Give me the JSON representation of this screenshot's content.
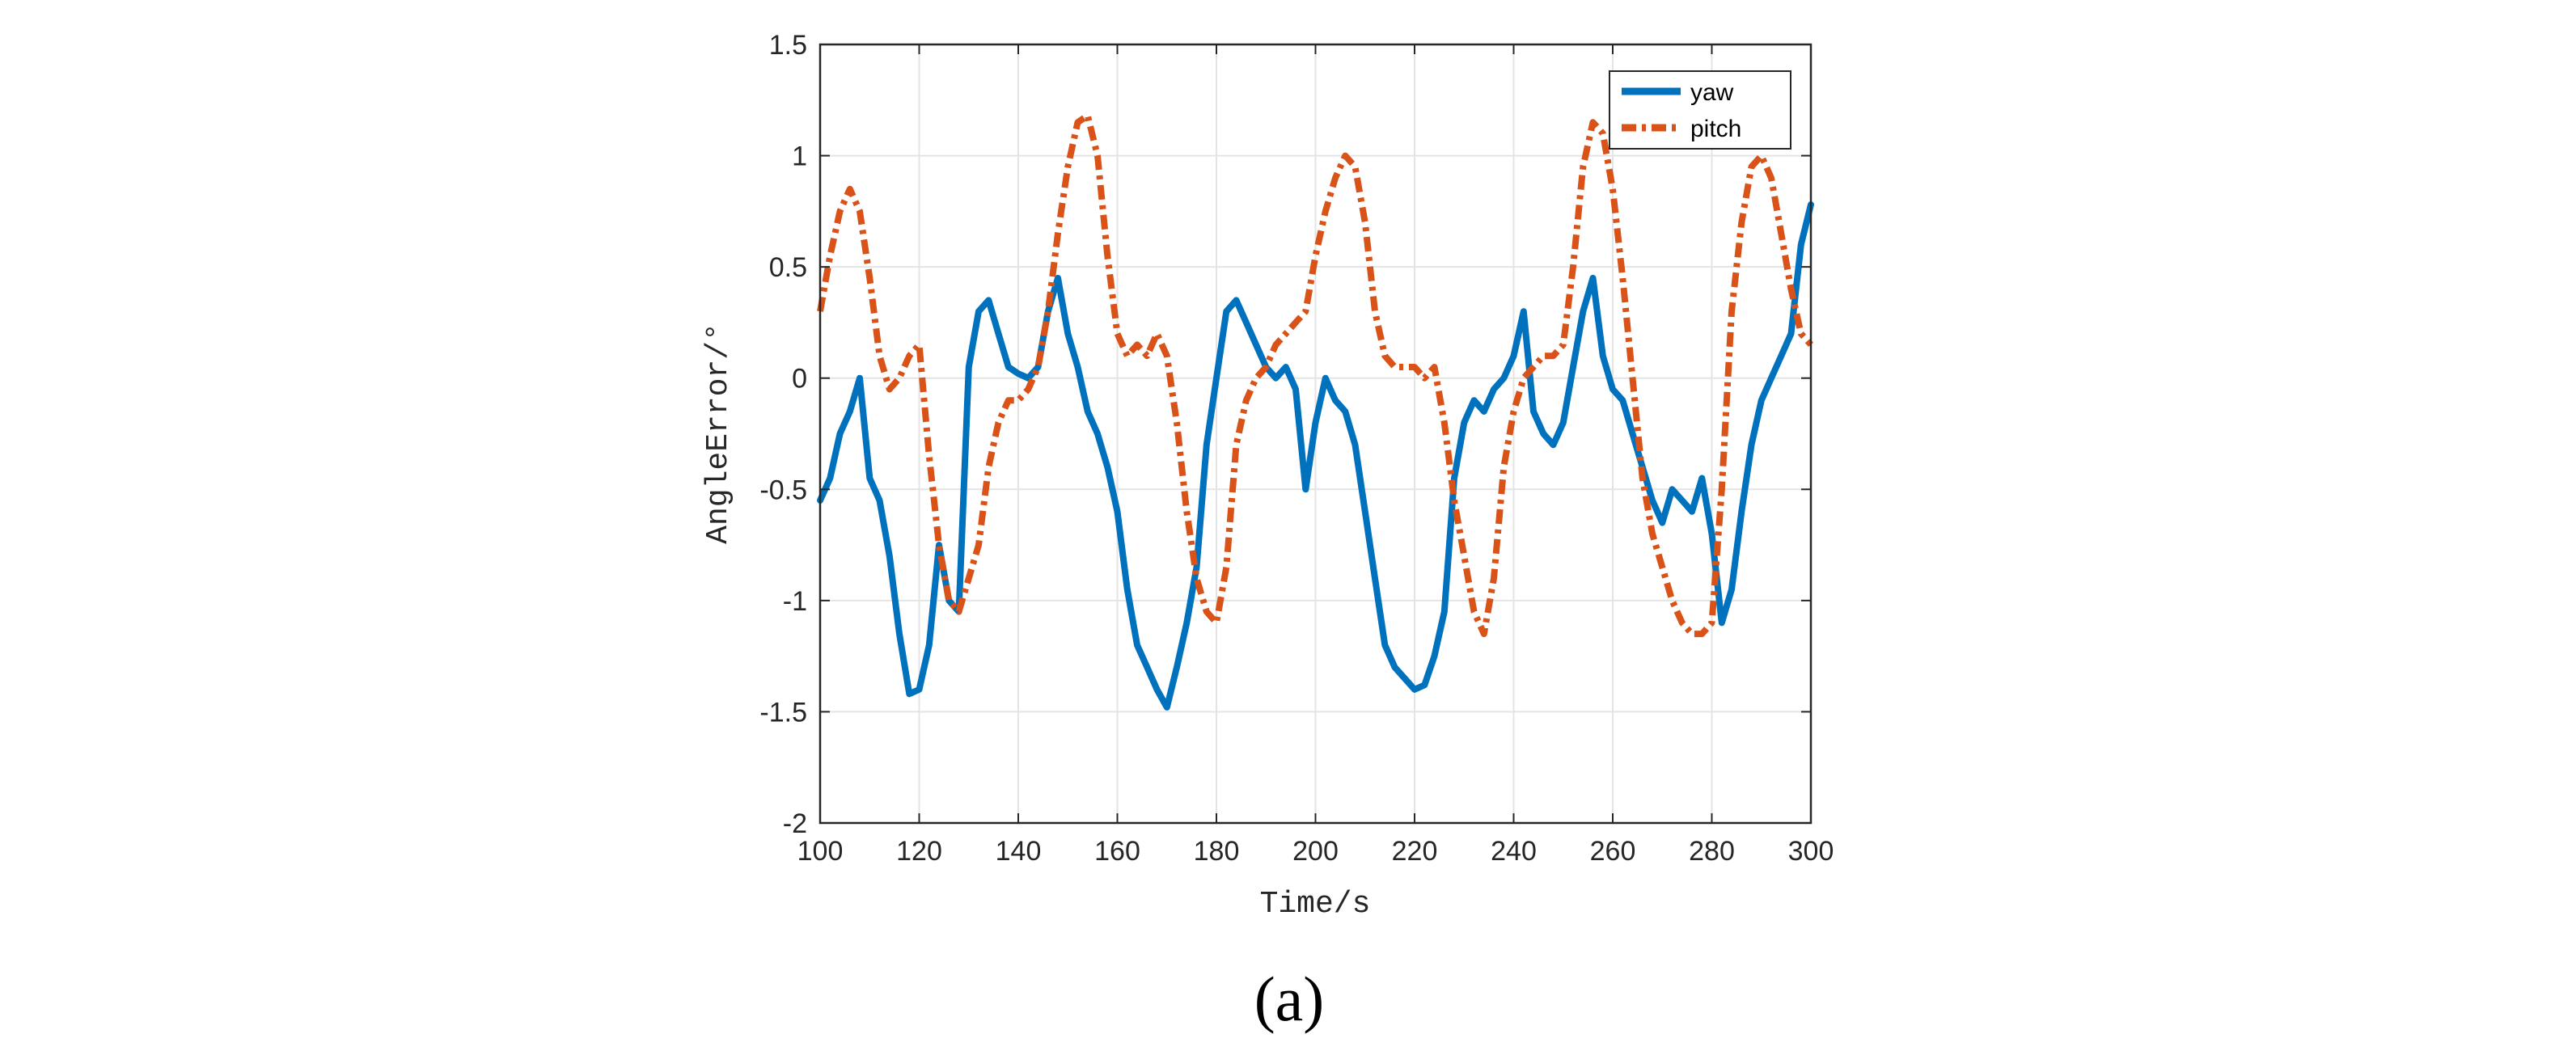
{
  "chart_data": {
    "type": "line",
    "title": "",
    "xlabel": "Time/s",
    "ylabel": "AngleError/°",
    "xlim": [
      100,
      300
    ],
    "ylim": [
      -2,
      1.5
    ],
    "xticks": [
      100,
      120,
      140,
      160,
      180,
      200,
      220,
      240,
      260,
      280,
      300
    ],
    "yticks": [
      -2,
      -1.5,
      -1,
      -0.5,
      0,
      0.5,
      1,
      1.5
    ],
    "xtick_labels": [
      "100",
      "120",
      "140",
      "160",
      "180",
      "200",
      "220",
      "240",
      "260",
      "280",
      "300"
    ],
    "ytick_labels": [
      "-2",
      "-1.5",
      "-1",
      "-0.5",
      "0",
      "0.5",
      "1",
      "1.5"
    ],
    "grid": true,
    "legend_position": "top-right",
    "series": [
      {
        "name": "yaw",
        "color": "#0072BD",
        "style": "solid",
        "x": [
          100,
          102,
          104,
          106,
          108,
          110,
          112,
          114,
          116,
          118,
          120,
          122,
          124,
          126,
          128,
          130,
          132,
          134,
          136,
          138,
          140,
          142,
          144,
          146,
          148,
          150,
          152,
          154,
          156,
          158,
          160,
          162,
          164,
          166,
          168,
          170,
          172,
          174,
          176,
          178,
          180,
          182,
          184,
          186,
          188,
          190,
          192,
          194,
          196,
          198,
          200,
          202,
          204,
          206,
          208,
          210,
          212,
          214,
          216,
          218,
          220,
          222,
          224,
          226,
          228,
          230,
          232,
          234,
          236,
          238,
          240,
          242,
          244,
          246,
          248,
          250,
          252,
          254,
          256,
          258,
          260,
          262,
          264,
          266,
          268,
          270,
          272,
          274,
          276,
          278,
          280,
          282,
          284,
          286,
          288,
          290,
          292,
          294,
          296,
          298,
          300
        ],
        "y": [
          -0.55,
          -0.45,
          -0.25,
          -0.15,
          0.0,
          -0.45,
          -0.55,
          -0.8,
          -1.15,
          -1.42,
          -1.4,
          -1.2,
          -0.75,
          -1.0,
          -1.05,
          0.05,
          0.3,
          0.35,
          0.2,
          0.05,
          0.02,
          0.0,
          0.05,
          0.3,
          0.45,
          0.2,
          0.05,
          -0.15,
          -0.25,
          -0.4,
          -0.6,
          -0.95,
          -1.2,
          -1.3,
          -1.4,
          -1.48,
          -1.3,
          -1.1,
          -0.85,
          -0.3,
          0.0,
          0.3,
          0.35,
          0.25,
          0.15,
          0.05,
          0.0,
          0.05,
          -0.05,
          -0.5,
          -0.2,
          0.0,
          -0.1,
          -0.15,
          -0.3,
          -0.6,
          -0.9,
          -1.2,
          -1.3,
          -1.35,
          -1.4,
          -1.38,
          -1.25,
          -1.05,
          -0.45,
          -0.2,
          -0.1,
          -0.15,
          -0.05,
          0.0,
          0.1,
          0.3,
          -0.15,
          -0.25,
          -0.3,
          -0.2,
          0.05,
          0.3,
          0.45,
          0.1,
          -0.05,
          -0.1,
          -0.25,
          -0.4,
          -0.55,
          -0.65,
          -0.5,
          -0.55,
          -0.6,
          -0.45,
          -0.7,
          -1.1,
          -0.95,
          -0.6,
          -0.3,
          -0.1,
          0.0,
          0.1,
          0.2,
          0.6,
          0.78
        ]
      },
      {
        "name": "pitch",
        "color": "#D95319",
        "style": "dash-dot",
        "x": [
          100,
          102,
          104,
          106,
          108,
          110,
          112,
          114,
          116,
          118,
          120,
          122,
          124,
          126,
          128,
          130,
          132,
          134,
          136,
          138,
          140,
          142,
          144,
          146,
          148,
          150,
          152,
          154,
          156,
          158,
          160,
          162,
          164,
          166,
          168,
          170,
          172,
          174,
          176,
          178,
          180,
          182,
          184,
          186,
          188,
          190,
          192,
          194,
          196,
          198,
          200,
          202,
          204,
          206,
          208,
          210,
          212,
          214,
          216,
          218,
          220,
          222,
          224,
          226,
          228,
          230,
          232,
          234,
          236,
          238,
          240,
          242,
          244,
          246,
          248,
          250,
          252,
          254,
          256,
          258,
          260,
          262,
          264,
          266,
          268,
          270,
          272,
          274,
          276,
          278,
          280,
          282,
          284,
          286,
          288,
          290,
          292,
          294,
          296,
          298,
          300
        ],
        "y": [
          0.3,
          0.55,
          0.75,
          0.85,
          0.75,
          0.45,
          0.1,
          -0.05,
          0.0,
          0.1,
          0.15,
          -0.35,
          -0.75,
          -1.0,
          -1.05,
          -0.9,
          -0.75,
          -0.4,
          -0.2,
          -0.1,
          -0.1,
          -0.05,
          0.05,
          0.3,
          0.65,
          0.95,
          1.15,
          1.18,
          1.0,
          0.55,
          0.2,
          0.1,
          0.15,
          0.1,
          0.2,
          0.1,
          -0.2,
          -0.6,
          -0.9,
          -1.05,
          -1.1,
          -0.85,
          -0.3,
          -0.1,
          0.0,
          0.05,
          0.15,
          0.2,
          0.25,
          0.3,
          0.55,
          0.75,
          0.9,
          1.0,
          0.95,
          0.7,
          0.3,
          0.1,
          0.05,
          0.05,
          0.05,
          0.0,
          0.05,
          -0.2,
          -0.55,
          -0.8,
          -1.05,
          -1.15,
          -0.9,
          -0.4,
          -0.15,
          0.0,
          0.05,
          0.1,
          0.1,
          0.15,
          0.5,
          0.95,
          1.15,
          1.1,
          0.85,
          0.45,
          0.0,
          -0.45,
          -0.7,
          -0.85,
          -1.0,
          -1.1,
          -1.15,
          -1.15,
          -1.1,
          -0.5,
          0.3,
          0.7,
          0.95,
          1.0,
          0.9,
          0.65,
          0.4,
          0.2,
          0.15
        ]
      }
    ]
  },
  "caption": "(a)"
}
